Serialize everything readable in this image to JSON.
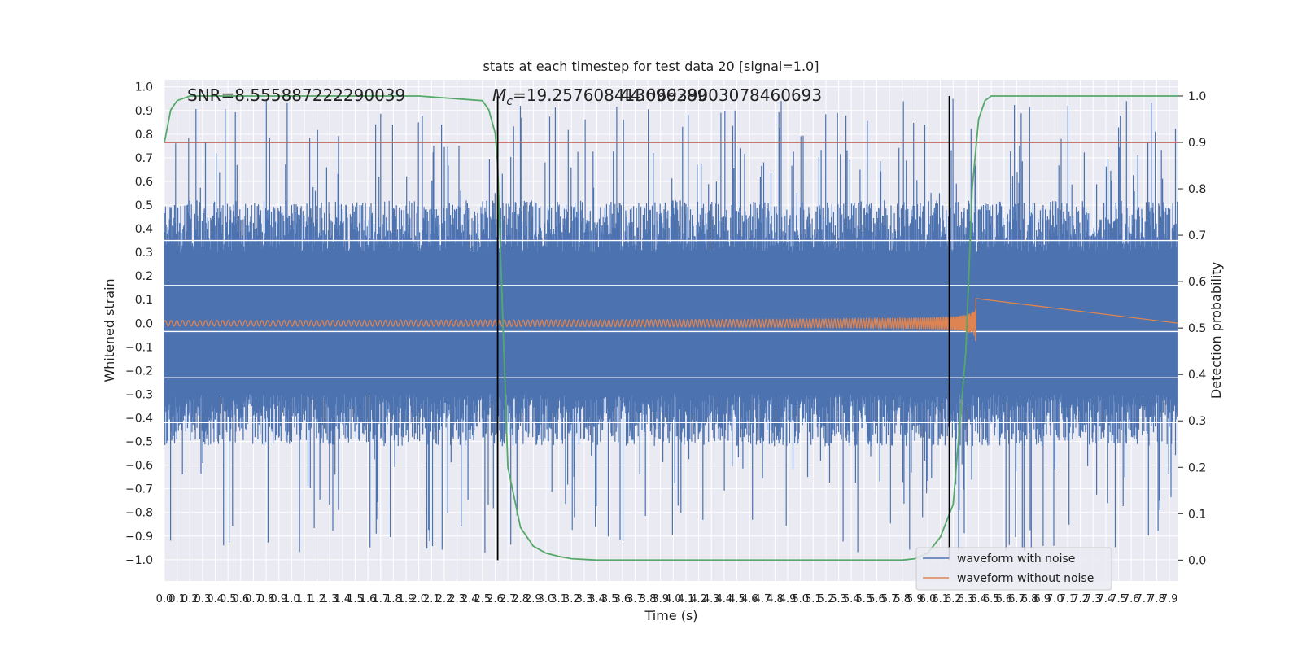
{
  "chart_data": {
    "type": "line",
    "title": "stats at each timestep for test data 20 [signal=1.0]",
    "xlabel": "Time (s)",
    "ylabel_left": "Whitened strain",
    "ylabel_right": "Detection probability",
    "xlim": [
      0.0,
      7.97
    ],
    "ylim_left": [
      -1.09,
      1.03
    ],
    "ylim_right": [
      -0.045,
      1.035
    ],
    "grid": true,
    "legend_position": "lower-right",
    "x_tick_labels": [
      "0.0",
      "0.1",
      "0.2",
      "0.3",
      "0.4",
      "0.5",
      "0.6",
      "0.7",
      "0.8",
      "0.9",
      "1.0",
      "1.1",
      "1.2",
      "1.3",
      "1.4",
      "1.5",
      "1.6",
      "1.7",
      "1.8",
      "1.9",
      "2.0",
      "2.1",
      "2.2",
      "2.3",
      "2.4",
      "2.5",
      "2.6",
      "2.7",
      "2.8",
      "2.9",
      "3.0",
      "3.1",
      "3.2",
      "3.3",
      "3.4",
      "3.5",
      "3.6",
      "3.7",
      "3.8",
      "3.9",
      "4.0",
      "4.1",
      "4.2",
      "4.3",
      "4.4",
      "4.5",
      "4.6",
      "4.7",
      "4.8",
      "4.9",
      "5.0",
      "5.1",
      "5.2",
      "5.3",
      "5.4",
      "5.5",
      "5.6",
      "5.7",
      "5.8",
      "5.9",
      "6.0",
      "6.1",
      "6.2",
      "6.3",
      "6.4",
      "6.5",
      "6.6",
      "6.7",
      "6.8",
      "6.9",
      "7.0",
      "7.1",
      "7.2",
      "7.3",
      "7.4",
      "7.5",
      "7.6",
      "7.7",
      "7.8",
      "7.9"
    ],
    "y_left_tick_labels": [
      "1.0",
      "0.9",
      "0.8",
      "0.7",
      "0.6",
      "0.5",
      "0.4",
      "0.3",
      "0.2",
      "0.1",
      "0.0",
      "−0.1",
      "−0.2",
      "−0.3",
      "−0.4",
      "−0.5",
      "−0.6",
      "−0.7",
      "−0.8",
      "−0.9",
      "−1.0"
    ],
    "y_right_tick_labels": [
      "1.0",
      "0.9",
      "0.8",
      "0.7",
      "0.6",
      "0.5",
      "0.4",
      "0.3",
      "0.2",
      "0.1",
      "0.0"
    ],
    "annotations": {
      "snr": "SNR=8.555887222290039",
      "mc_prefix": "M",
      "mc_sub": "c",
      "mc_value": "=19.257608413696289",
      "mc_overlap": "44.06939003078460693"
    },
    "series": [
      {
        "name": "waveform with noise",
        "color": "#4c72b0",
        "axis": "left",
        "description_envelope": {
          "typical_peak": 0.45,
          "max": 0.95,
          "min": -1.0
        }
      },
      {
        "name": "waveform without noise",
        "color": "#dd8452",
        "axis": "left",
        "chirp": {
          "start": 0.0,
          "merger": 6.38,
          "end": 7.97,
          "amp_start": 0.012,
          "amp_peak": 0.34
        }
      },
      {
        "name": "detection probability",
        "color": "#55a868",
        "axis": "right",
        "x": [
          0.0,
          0.05,
          0.1,
          0.2,
          0.5,
          1.0,
          2.0,
          2.5,
          2.55,
          2.6,
          2.62,
          2.65,
          2.7,
          2.8,
          2.9,
          3.0,
          3.1,
          3.2,
          3.4,
          4.0,
          5.0,
          5.8,
          5.9,
          6.0,
          6.1,
          6.2,
          6.3,
          6.35,
          6.4,
          6.45,
          6.5,
          6.6,
          7.0,
          7.97
        ],
        "y": [
          0.9,
          0.97,
          0.99,
          1.0,
          1.0,
          1.0,
          1.0,
          0.99,
          0.97,
          0.92,
          0.85,
          0.6,
          0.2,
          0.07,
          0.03,
          0.015,
          0.008,
          0.003,
          0.0,
          0.0,
          0.0,
          0.0,
          0.003,
          0.015,
          0.05,
          0.12,
          0.45,
          0.8,
          0.95,
          0.99,
          1.0,
          1.0,
          1.0,
          1.0
        ]
      }
    ],
    "threshold_line": {
      "color": "#c44e52",
      "value_right": 0.9
    },
    "vertical_lines": {
      "color": "#000000",
      "x": [
        2.62,
        6.17
      ],
      "y_range_right": [
        0.0,
        1.0
      ]
    },
    "white_hlines_left": [
      0.35,
      0.16,
      -0.035,
      -0.23,
      -0.42
    ],
    "legend": [
      "waveform with noise",
      "waveform without noise"
    ]
  }
}
